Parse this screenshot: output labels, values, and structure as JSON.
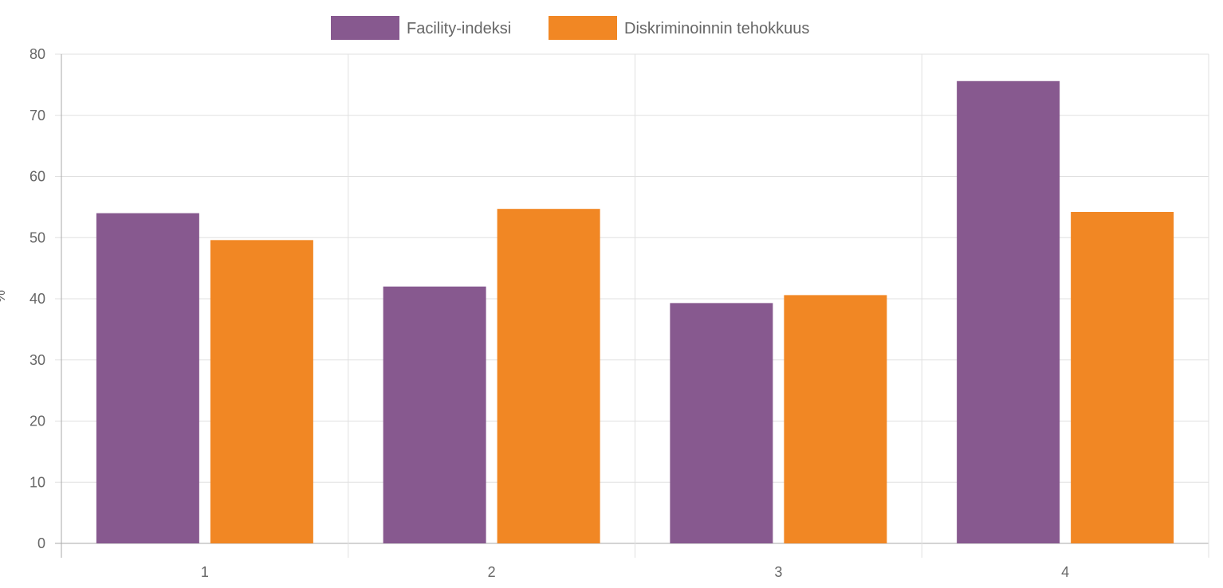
{
  "chart_data": {
    "type": "bar",
    "title": "",
    "xlabel": "",
    "ylabel": "%",
    "categories": [
      "1",
      "2",
      "3",
      "4"
    ],
    "series": [
      {
        "name": "Facility-indeksi",
        "color": "#87598f",
        "values": [
          54,
          42,
          39.3,
          75.6
        ]
      },
      {
        "name": "Diskriminoinnin tehokkuus",
        "color": "#f18724",
        "values": [
          49.6,
          54.7,
          40.6,
          54.2
        ]
      }
    ],
    "ylim": [
      0,
      80
    ],
    "yticks": [
      0,
      10,
      20,
      30,
      40,
      50,
      60,
      70,
      80
    ],
    "grid": true,
    "legend_position": "top-center"
  }
}
